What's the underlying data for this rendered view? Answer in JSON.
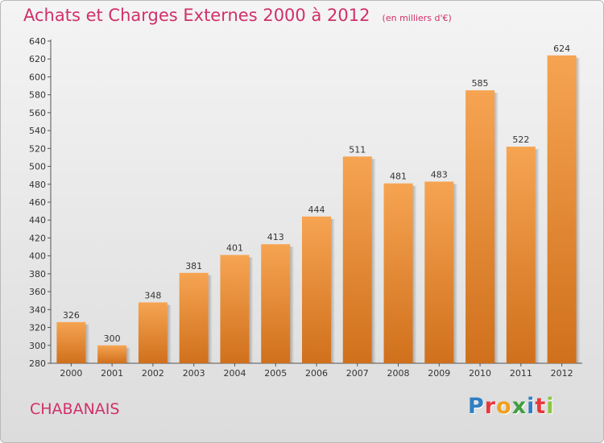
{
  "chart_data": {
    "type": "bar",
    "title": "Achats et Charges Externes 2000 à 2012",
    "subtitle": "(en milliers d'€)",
    "categories": [
      "2000",
      "2001",
      "2002",
      "2003",
      "2004",
      "2005",
      "2006",
      "2007",
      "2008",
      "2009",
      "2010",
      "2011",
      "2012"
    ],
    "values": [
      326,
      300,
      348,
      381,
      401,
      413,
      444,
      511,
      481,
      483,
      585,
      522,
      624
    ],
    "data_labels": [
      "326",
      "300",
      "348",
      "381",
      "401",
      "413",
      "444",
      "511",
      "481",
      "483",
      "585",
      "522",
      "624"
    ],
    "yticks": [
      "280",
      "300",
      "320",
      "340",
      "360",
      "380",
      "400",
      "420",
      "440",
      "460",
      "480",
      "500",
      "520",
      "540",
      "560",
      "580",
      "600",
      "620",
      "640"
    ],
    "ylim": [
      280,
      640
    ],
    "grid": false,
    "bar_color": "#f0923a",
    "xlabel": "",
    "ylabel": ""
  },
  "footer": {
    "town": "CHABANAIS",
    "logo_letters": [
      {
        "ch": "P",
        "color": "#2e7fc1"
      },
      {
        "ch": "r",
        "color": "#e8383d"
      },
      {
        "ch": "o",
        "color": "#f0a020"
      },
      {
        "ch": "x",
        "color": "#3f9e3f"
      },
      {
        "ch": "i",
        "color": "#2e7fc1"
      },
      {
        "ch": "t",
        "color": "#e8383d"
      },
      {
        "ch": "i",
        "color": "#8cc63f"
      }
    ]
  }
}
